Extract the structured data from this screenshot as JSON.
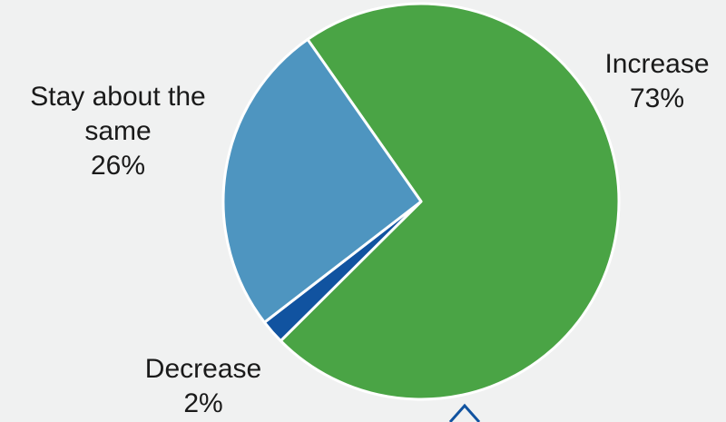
{
  "chart_data": {
    "type": "pie",
    "title": "",
    "slices": [
      {
        "label": "Increase",
        "value": 73,
        "display": "73%",
        "color": "#4aa445"
      },
      {
        "label": "Decrease",
        "value": 2,
        "display": "2%",
        "color": "#1153a0"
      },
      {
        "label": "Stay about the same",
        "value": 26,
        "display": "26%",
        "color": "#4e95c0"
      }
    ],
    "slice_order": "clockwise from top",
    "legend": "none",
    "label_style": "outside labels with percentages"
  },
  "labels": {
    "stay": {
      "line1": "Stay about the",
      "line2": "same",
      "pct": "26%"
    },
    "increase": {
      "line1": "Increase",
      "pct": "73%"
    },
    "decrease": {
      "line1": "Decrease",
      "pct": "2%"
    }
  },
  "colors": {
    "background": "#f0f1f1",
    "increase": "#4aa445",
    "decrease": "#1153a0",
    "stay": "#4e95c0",
    "separator": "#ffffff",
    "arrow": "#1153a0"
  }
}
